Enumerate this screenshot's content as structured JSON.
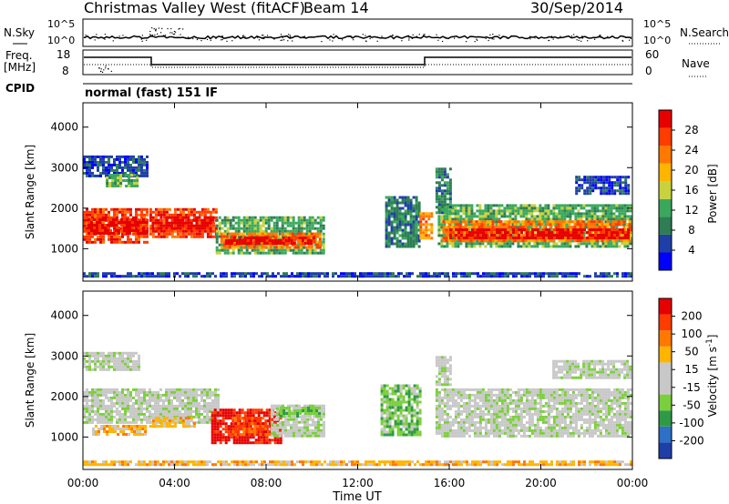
{
  "header": {
    "title": "Christmas Valley West (fitACF)",
    "beam": "Beam 14",
    "date": "30/Sep/2014"
  },
  "top_panels": {
    "nsky_label": "N.Sky",
    "nsky_ticks": [
      "10^5",
      "10^0"
    ],
    "nsearch_label": "N.Search",
    "nsearch_ticks": [
      "10^5",
      "10^0"
    ],
    "freq_label_1": "Freq.",
    "freq_label_2": "[MHz]",
    "freq_ticks": [
      "18",
      "8"
    ],
    "nave_label": "Nave",
    "nave_ticks": [
      "60",
      "0"
    ],
    "cpid_label": "CPID",
    "cpid_value": "normal (fast) 151 IF"
  },
  "colors": {
    "power": [
      "#0000ff",
      "#1f3fa8",
      "#2e7d54",
      "#3aa85c",
      "#c8d23c",
      "#ffb400",
      "#ff7800",
      "#ff3c00",
      "#e60000"
    ],
    "velocity": [
      "#1f3fa8",
      "#2e6fc8",
      "#2f9a46",
      "#7ccf3c",
      "#c8c8c8",
      "#c8c8c8",
      "#ffb400",
      "#ff7800",
      "#ff3c00",
      "#e60000"
    ],
    "ground_scatter": "#bebebe"
  },
  "chart_data": [
    {
      "type": "heatmap",
      "panel": "power",
      "ylabel": "Slant Range [km]",
      "yticks": [
        "4000",
        "3000",
        "2000",
        "1000"
      ],
      "ylim": [
        200,
        4600
      ],
      "xlim": [
        0,
        24
      ],
      "colorbar_label": "Power [dB]",
      "colorbar_ticks": [
        "28",
        "24",
        "20",
        "16",
        "12",
        "8",
        "4"
      ],
      "bands": [
        {
          "x0": 0.0,
          "x1": 2.9,
          "y0": 1100,
          "y1": 2000,
          "level": 7
        },
        {
          "x0": 0.2,
          "x1": 2.9,
          "y0": 1300,
          "y1": 1750,
          "level": 8
        },
        {
          "x0": 0.0,
          "x1": 2.9,
          "y0": 2700,
          "y1": 3300,
          "level": 1
        },
        {
          "x0": 1.0,
          "x1": 2.5,
          "y0": 2500,
          "y1": 2850,
          "level": 3
        },
        {
          "x0": 2.9,
          "x1": 6.0,
          "y0": 1200,
          "y1": 2000,
          "level": 7
        },
        {
          "x0": 3.0,
          "x1": 5.8,
          "y0": 1450,
          "y1": 1800,
          "level": 8
        },
        {
          "x0": 5.8,
          "x1": 10.6,
          "y0": 800,
          "y1": 1800,
          "level": 3
        },
        {
          "x0": 6.0,
          "x1": 10.5,
          "y0": 950,
          "y1": 1400,
          "level": 6
        },
        {
          "x0": 6.2,
          "x1": 10.2,
          "y0": 1050,
          "y1": 1300,
          "level": 8
        },
        {
          "x0": 13.2,
          "x1": 14.8,
          "y0": 1000,
          "y1": 2300,
          "level": 2
        },
        {
          "x0": 14.7,
          "x1": 15.3,
          "y0": 1200,
          "y1": 1900,
          "level": 6
        },
        {
          "x0": 15.5,
          "x1": 24.0,
          "y0": 1000,
          "y1": 2100,
          "level": 3
        },
        {
          "x0": 15.7,
          "x1": 24.0,
          "y0": 1100,
          "y1": 1700,
          "level": 6
        },
        {
          "x0": 16.0,
          "x1": 24.0,
          "y0": 1200,
          "y1": 1500,
          "level": 8
        },
        {
          "x0": 15.4,
          "x1": 16.2,
          "y0": 1800,
          "y1": 3000,
          "level": 2
        },
        {
          "x0": 21.5,
          "x1": 24.0,
          "y0": 2300,
          "y1": 2800,
          "level": 1
        },
        {
          "x0": 0.0,
          "x1": 24.0,
          "y0": 250,
          "y1": 420,
          "level": 1
        }
      ]
    },
    {
      "type": "heatmap",
      "panel": "velocity",
      "ylabel": "Slant Range [km]",
      "yticks": [
        "4000",
        "3000",
        "2000",
        "1000"
      ],
      "ylim": [
        200,
        4600
      ],
      "xlim": [
        0,
        24
      ],
      "colorbar_label": "Velocity [m s^-1]",
      "colorbar_ticks": [
        "200",
        "100",
        "50",
        "15",
        "-15",
        "-50",
        "-100",
        "-200"
      ],
      "bands": [
        {
          "x0": 0.0,
          "x1": 6.0,
          "y0": 1300,
          "y1": 2200,
          "level": 4
        },
        {
          "x0": 0.0,
          "x1": 2.6,
          "y0": 2600,
          "y1": 3100,
          "level": 4
        },
        {
          "x0": 0.4,
          "x1": 2.9,
          "y0": 1000,
          "y1": 1300,
          "level": 6
        },
        {
          "x0": 2.9,
          "x1": 5.0,
          "y0": 1200,
          "y1": 1500,
          "level": 6
        },
        {
          "x0": 5.6,
          "x1": 8.8,
          "y0": 800,
          "y1": 1700,
          "level": 9
        },
        {
          "x0": 6.5,
          "x1": 8.5,
          "y0": 1000,
          "y1": 1500,
          "level": 8
        },
        {
          "x0": 8.2,
          "x1": 10.6,
          "y0": 950,
          "y1": 1800,
          "level": 4
        },
        {
          "x0": 8.6,
          "x1": 10.4,
          "y0": 1450,
          "y1": 1750,
          "level": 3
        },
        {
          "x0": 13.0,
          "x1": 14.8,
          "y0": 1000,
          "y1": 2300,
          "level": 3
        },
        {
          "x0": 15.4,
          "x1": 24.0,
          "y0": 950,
          "y1": 2200,
          "level": 4
        },
        {
          "x0": 15.4,
          "x1": 16.2,
          "y0": 2200,
          "y1": 3000,
          "level": 4
        },
        {
          "x0": 20.5,
          "x1": 24.0,
          "y0": 2400,
          "y1": 2900,
          "level": 4
        },
        {
          "x0": 0.0,
          "x1": 24.0,
          "y0": 250,
          "y1": 420,
          "level": 6
        }
      ]
    }
  ],
  "xaxis": {
    "label": "Time UT",
    "ticks": [
      "00:00",
      "04:00",
      "08:00",
      "12:00",
      "16:00",
      "20:00",
      "00:00"
    ]
  }
}
